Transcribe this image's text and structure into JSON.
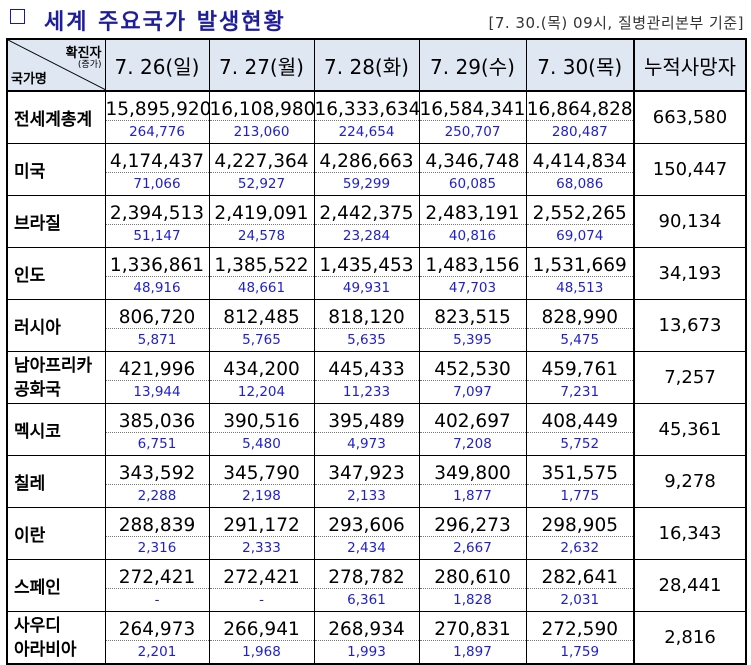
{
  "title": "세계 주요국가 발생현황",
  "source": "[7. 30.(목) 09시, 질병관리본부 기준]",
  "header": {
    "corner_top": "확진자",
    "corner_sub": "(증가)",
    "corner_left": "국가명",
    "dates": [
      "7. 26(일)",
      "7. 27(월)",
      "7. 28(화)",
      "7. 29(수)",
      "7. 30(목)"
    ],
    "deaths": "누적사망자"
  },
  "rows": [
    {
      "name": "전세계총계",
      "cum": [
        "15,895,920",
        "16,108,980",
        "16,333,634",
        "16,584,341",
        "16,864,828"
      ],
      "inc": [
        "264,776",
        "213,060",
        "224,654",
        "250,707",
        "280,487"
      ],
      "deaths": "663,580"
    },
    {
      "name": "미국",
      "cum": [
        "4,174,437",
        "4,227,364",
        "4,286,663",
        "4,346,748",
        "4,414,834"
      ],
      "inc": [
        "71,066",
        "52,927",
        "59,299",
        "60,085",
        "68,086"
      ],
      "deaths": "150,447"
    },
    {
      "name": "브라질",
      "cum": [
        "2,394,513",
        "2,419,091",
        "2,442,375",
        "2,483,191",
        "2,552,265"
      ],
      "inc": [
        "51,147",
        "24,578",
        "23,284",
        "40,816",
        "69,074"
      ],
      "deaths": "90,134"
    },
    {
      "name": "인도",
      "cum": [
        "1,336,861",
        "1,385,522",
        "1,435,453",
        "1,483,156",
        "1,531,669"
      ],
      "inc": [
        "48,916",
        "48,661",
        "49,931",
        "47,703",
        "48,513"
      ],
      "deaths": "34,193"
    },
    {
      "name": "러시아",
      "cum": [
        "806,720",
        "812,485",
        "818,120",
        "823,515",
        "828,990"
      ],
      "inc": [
        "5,871",
        "5,765",
        "5,635",
        "5,395",
        "5,475"
      ],
      "deaths": "13,673"
    },
    {
      "name": "남아프리카",
      "name2": "공화국",
      "cum": [
        "421,996",
        "434,200",
        "445,433",
        "452,530",
        "459,761"
      ],
      "inc": [
        "13,944",
        "12,204",
        "11,233",
        "7,097",
        "7,231"
      ],
      "deaths": "7,257"
    },
    {
      "name": "멕시코",
      "cum": [
        "385,036",
        "390,516",
        "395,489",
        "402,697",
        "408,449"
      ],
      "inc": [
        "6,751",
        "5,480",
        "4,973",
        "7,208",
        "5,752"
      ],
      "deaths": "45,361"
    },
    {
      "name": "칠레",
      "cum": [
        "343,592",
        "345,790",
        "347,923",
        "349,800",
        "351,575"
      ],
      "inc": [
        "2,288",
        "2,198",
        "2,133",
        "1,877",
        "1,775"
      ],
      "deaths": "9,278"
    },
    {
      "name": "이란",
      "cum": [
        "288,839",
        "291,172",
        "293,606",
        "296,273",
        "298,905"
      ],
      "inc": [
        "2,316",
        "2,333",
        "2,434",
        "2,667",
        "2,632"
      ],
      "deaths": "16,343"
    },
    {
      "name": "스페인",
      "cum": [
        "272,421",
        "272,421",
        "278,782",
        "280,610",
        "282,641"
      ],
      "inc": [
        "-",
        "-",
        "6,361",
        "1,828",
        "2,031"
      ],
      "deaths": "28,441"
    },
    {
      "name": "사우디",
      "name2": "아라비아",
      "cum": [
        "264,973",
        "266,941",
        "268,934",
        "270,831",
        "272,590"
      ],
      "inc": [
        "2,201",
        "1,968",
        "1,993",
        "1,897",
        "1,759"
      ],
      "deaths": "2,816"
    }
  ]
}
